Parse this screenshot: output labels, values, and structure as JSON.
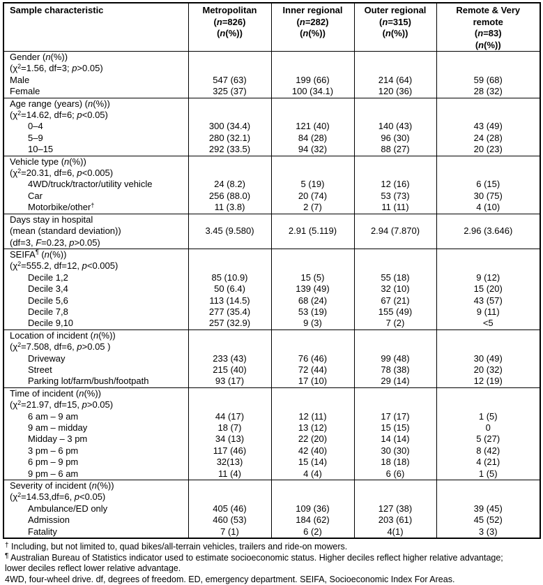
{
  "header": {
    "char_col": "Sample characteristic",
    "group_cols": [
      "Metropolitan<br>(<i>n</i>=826)<br>(<i>n</i>(%))",
      "Inner regional<br>(<i>n</i>=282)<br>(<i>n</i>(%))",
      "Outer regional<br>(<i>n</i>=315)<br>(<i>n</i>(%))",
      "Remote &amp; Very<br>remote<br>(<i>n</i>=83)<br>(<i>n</i>(%))"
    ]
  },
  "sections": [
    {
      "id": "gender",
      "rows": [
        {
          "label": "Gender (<i>n</i>(%))",
          "indent": 0,
          "values": [
            "",
            "",
            "",
            ""
          ]
        },
        {
          "label": "(χ<sup>2</sup>=1.56, df=3; <i>p</i>&gt;0.05)",
          "indent": 0,
          "values": [
            "",
            "",
            "",
            ""
          ]
        },
        {
          "label": "Male",
          "indent": 0,
          "values": [
            "547 (63)",
            "199 (66)",
            "214 (64)",
            "59 (68)"
          ]
        },
        {
          "label": "Female",
          "indent": 0,
          "values": [
            "325 (37)",
            "100 (34.1)",
            "120 (36)",
            "28 (32)"
          ]
        }
      ]
    },
    {
      "id": "age-range",
      "rows": [
        {
          "label": "Age range (years) (<i>n</i>(%))",
          "indent": 0,
          "values": [
            "",
            "",
            "",
            ""
          ]
        },
        {
          "label": "(χ<sup>2</sup>=14.62, df=6; <i>p</i>&lt;0.05)",
          "indent": 0,
          "values": [
            "",
            "",
            "",
            ""
          ]
        },
        {
          "label": "0–4",
          "indent": 1,
          "values": [
            "300 (34.4)",
            "121 (40)",
            "140 (43)",
            "43 (49)"
          ]
        },
        {
          "label": "5–9",
          "indent": 1,
          "values": [
            "280 (32.1)",
            "84 (28)",
            "96 (30)",
            "24 (28)"
          ]
        },
        {
          "label": "10–15",
          "indent": 1,
          "values": [
            "292 (33.5)",
            "94 (32)",
            "88 (27)",
            "20 (23)"
          ]
        }
      ]
    },
    {
      "id": "vehicle-type",
      "rows": [
        {
          "label": "Vehicle type (<i>n</i>(%))",
          "indent": 0,
          "values": [
            "",
            "",
            "",
            ""
          ]
        },
        {
          "label": "(χ<sup>2</sup>=20.31, df=6, <i>p</i>&lt;0.005)",
          "indent": 0,
          "values": [
            "",
            "",
            "",
            ""
          ]
        },
        {
          "label": "4WD/truck/tractor/utility vehicle",
          "indent": 1,
          "values": [
            "24 (8.2)",
            "5 (19)",
            "12 (16)",
            "6 (15)"
          ]
        },
        {
          "label": "Car",
          "indent": 1,
          "values": [
            "256 (88.0)",
            "20 (74)",
            "53 (73)",
            "30 (75)"
          ]
        },
        {
          "label": "Motorbike/other<sup>†</sup>",
          "indent": 1,
          "values": [
            "11 (3.8)",
            "2 (7)",
            "11 (11)",
            "4 (10)"
          ]
        }
      ]
    },
    {
      "id": "days-stay",
      "rows": [
        {
          "label": "Days stay in hospital",
          "indent": 0,
          "values": [
            "",
            "",
            "",
            ""
          ]
        },
        {
          "label": "(mean (standard deviation))",
          "indent": 0,
          "values": [
            "3.45 (9.580)",
            "2.91 (5.119)",
            "2.94 (7.870)",
            "2.96 (3.646)"
          ]
        },
        {
          "label": "(df=3, <i>F</i>=0.23, <i>p</i>&gt;0.05)",
          "indent": 0,
          "values": [
            "",
            "",
            "",
            ""
          ]
        }
      ]
    },
    {
      "id": "seifa",
      "rows": [
        {
          "label": "SEIFA<sup>¶</sup> (<i>n</i>(%))",
          "indent": 0,
          "values": [
            "",
            "",
            "",
            ""
          ]
        },
        {
          "label": "(χ<sup>2</sup>=555.2, df=12, <i>p</i>&lt;0.005)",
          "indent": 0,
          "values": [
            "",
            "",
            "",
            ""
          ]
        },
        {
          "label": "Decile 1,2",
          "indent": 1,
          "values": [
            "85 (10.9)",
            "15 (5)",
            "55 (18)",
            "9 (12)"
          ]
        },
        {
          "label": "Decile 3,4",
          "indent": 1,
          "values": [
            "50 (6.4)",
            "139 (49)",
            "32 (10)",
            "15 (20)"
          ]
        },
        {
          "label": "Decile 5,6",
          "indent": 1,
          "values": [
            "113 (14.5)",
            "68 (24)",
            "67 (21)",
            "43 (57)"
          ]
        },
        {
          "label": "Decile 7,8",
          "indent": 1,
          "values": [
            "277 (35.4)",
            "53 (19)",
            "155 (49)",
            "9 (11)"
          ]
        },
        {
          "label": "Decile 9,10",
          "indent": 1,
          "values": [
            "257 (32.9)",
            "9 (3)",
            "7 (2)",
            "<5"
          ]
        }
      ]
    },
    {
      "id": "location",
      "rows": [
        {
          "label": "Location of incident (<i>n</i>(%))",
          "indent": 0,
          "values": [
            "",
            "",
            "",
            ""
          ]
        },
        {
          "label": "(χ<sup>2</sup>=7.508, df=6, <i>p</i>&gt;0.05 )",
          "indent": 0,
          "values": [
            "",
            "",
            "",
            ""
          ]
        },
        {
          "label": "Driveway",
          "indent": 1,
          "values": [
            "233 (43)",
            "76 (46)",
            "99 (48)",
            "30 (49)"
          ]
        },
        {
          "label": "Street",
          "indent": 1,
          "values": [
            "215 (40)",
            "72 (44)",
            "78 (38)",
            "20 (32)"
          ]
        },
        {
          "label": "Parking lot/farm/bush/footpath",
          "indent": 1,
          "values": [
            "93 (17)",
            "17 (10)",
            "29 (14)",
            "12 (19)"
          ]
        }
      ]
    },
    {
      "id": "time",
      "rows": [
        {
          "label": "Time of incident (<i>n</i>(%))",
          "indent": 0,
          "values": [
            "",
            "",
            "",
            ""
          ]
        },
        {
          "label": "(χ<sup>2</sup>=21.97, df=15, <i>p</i>&gt;0.05)",
          "indent": 0,
          "values": [
            "",
            "",
            "",
            ""
          ]
        },
        {
          "label": "6 am – 9 am",
          "indent": 1,
          "values": [
            "44 (17)",
            "12 (11)",
            "17 (17)",
            "1 (5)"
          ]
        },
        {
          "label": "9 am – midday",
          "indent": 1,
          "values": [
            "18 (7)",
            "13 (12)",
            "15 (15)",
            "0"
          ]
        },
        {
          "label": "Midday – 3 pm",
          "indent": 1,
          "values": [
            "34 (13)",
            "22 (20)",
            "14 (14)",
            "5 (27)"
          ]
        },
        {
          "label": "3 pm – 6 pm",
          "indent": 1,
          "values": [
            "117 (46)",
            "42 (40)",
            "30 (30)",
            "8 (42)"
          ]
        },
        {
          "label": "6 pm – 9 pm",
          "indent": 1,
          "values": [
            "32(13)",
            "15 (14)",
            "18 (18)",
            "4 (21)"
          ]
        },
        {
          "label": "9 pm – 6 am",
          "indent": 1,
          "values": [
            "11 (4)",
            "4 (4)",
            "6 (6)",
            "1 (5)"
          ]
        }
      ]
    },
    {
      "id": "severity",
      "rows": [
        {
          "label": "Severity of incident (<i>n</i>(%))",
          "indent": 0,
          "values": [
            "",
            "",
            "",
            ""
          ]
        },
        {
          "label": "(χ<sup>2</sup>=14.53,df=6, <i>p</i>&lt;0.05)",
          "indent": 0,
          "values": [
            "",
            "",
            "",
            ""
          ]
        },
        {
          "label": "Ambulance/ED only",
          "indent": 1,
          "values": [
            "405 (46)",
            "109 (36)",
            "127 (38)",
            "39 (45)"
          ]
        },
        {
          "label": "Admission",
          "indent": 1,
          "values": [
            "460 (53)",
            "184 (62)",
            "203 (61)",
            "45 (52)"
          ]
        },
        {
          "label": "Fatality",
          "indent": 1,
          "values": [
            "7 (1)",
            "6 (2)",
            "4(1)",
            "3 (3)"
          ]
        }
      ]
    }
  ],
  "footnotes": [
    "<sup>†</sup> Including, but not limited to, quad bikes/all-terrain vehicles, trailers and ride-on mowers.",
    "<sup>¶</sup> Australian Bureau of Statistics indicator used to estimate socioeconomic status. Higher deciles reflect higher relative advantage; lower deciles reflect lower relative advantage.",
    "4WD, four-wheel drive. df, degrees of freedom. ED, emergency department. SEIFA, Socioeconomic Index For Areas."
  ]
}
